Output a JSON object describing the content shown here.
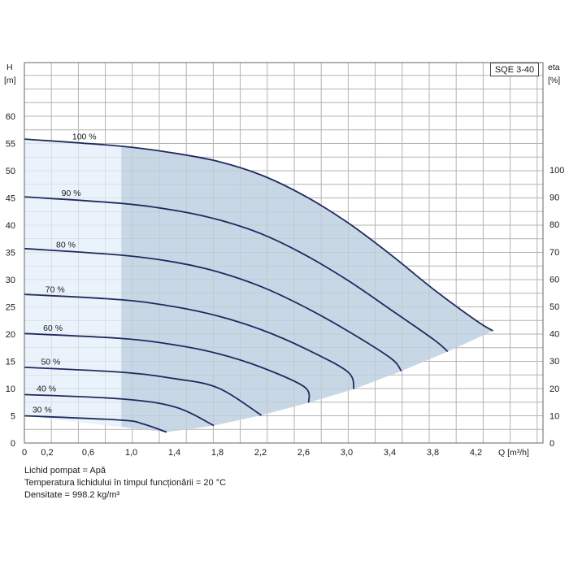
{
  "model": "SQE 3-40",
  "notes": [
    "Lichid pompat = Apă",
    "Temperatura lichidului în timpul funcționării = 20 °C",
    "Densitate = 998.2 kg/m³"
  ],
  "colors": {
    "curve": "#1f2a5e",
    "region_dark": "#c7d7e5",
    "region_light": "#eaf3fb",
    "grid": "#b3b3b3",
    "frame": "#666666"
  },
  "chart_data": {
    "type": "line",
    "title": "",
    "x_axis": {
      "label": "Q [m³/h]",
      "range": [
        0,
        4.7
      ],
      "ticks": [
        "0",
        "0,2",
        "0,6",
        "1,0",
        "1,4",
        "1,8",
        "2,2",
        "2,6",
        "3,0",
        "3,4",
        "3,8",
        "4,2"
      ]
    },
    "y_axis_left": {
      "label_top": "H",
      "label_unit": "[m]",
      "range": [
        0,
        60
      ],
      "ticks": [
        0,
        5,
        10,
        15,
        20,
        25,
        30,
        35,
        40,
        45,
        50,
        55,
        60
      ]
    },
    "y_axis_right": {
      "label_top": "eta",
      "label_unit": "[%]",
      "range": [
        0,
        100
      ],
      "ticks": [
        0,
        10,
        20,
        30,
        40,
        50,
        60,
        70,
        80,
        90,
        100
      ]
    },
    "grid": true,
    "series": [
      {
        "name": "100 %",
        "x": [
          0,
          0.9,
          1.4,
          1.8,
          2.2,
          2.6,
          3.0,
          3.4,
          3.8,
          4.2,
          4.35
        ],
        "y": [
          55.8,
          54.5,
          53.2,
          51.7,
          49.2,
          45.4,
          40.5,
          34.6,
          28.2,
          22.4,
          20.6
        ]
      },
      {
        "name": "90 %",
        "x": [
          0,
          0.9,
          1.4,
          1.8,
          2.2,
          2.6,
          3.0,
          3.4,
          3.8,
          3.93
        ],
        "y": [
          45.2,
          44.0,
          42.7,
          41.0,
          38.4,
          34.6,
          29.9,
          24.5,
          19.0,
          16.8
        ]
      },
      {
        "name": "80 %",
        "x": [
          0,
          0.9,
          1.4,
          1.8,
          2.2,
          2.6,
          3.0,
          3.4,
          3.5
        ],
        "y": [
          35.7,
          34.5,
          33.2,
          31.4,
          28.7,
          25.0,
          20.6,
          15.6,
          13.2
        ]
      },
      {
        "name": "70 %",
        "x": [
          0,
          0.9,
          1.4,
          1.8,
          2.2,
          2.6,
          3.0,
          3.06
        ],
        "y": [
          27.3,
          26.3,
          25.0,
          23.3,
          20.8,
          17.4,
          13.1,
          9.9
        ]
      },
      {
        "name": "60 %",
        "x": [
          0,
          0.9,
          1.4,
          1.8,
          2.2,
          2.6,
          2.64
        ],
        "y": [
          20.1,
          19.2,
          18.0,
          16.4,
          13.9,
          10.3,
          7.4
        ]
      },
      {
        "name": "50 %",
        "x": [
          0,
          0.9,
          1.4,
          1.8,
          2.2
        ],
        "y": [
          13.9,
          13.0,
          11.8,
          10.1,
          5.1
        ]
      },
      {
        "name": "40 %",
        "x": [
          0,
          0.9,
          1.4,
          1.76
        ],
        "y": [
          8.9,
          8.1,
          6.6,
          3.2
        ]
      },
      {
        "name": "30 %",
        "x": [
          0,
          0.9,
          1.1,
          1.32
        ],
        "y": [
          5.0,
          4.2,
          3.5,
          2.0
        ]
      }
    ],
    "operating_region": {
      "lower_boundary": {
        "x": [
          1.32,
          1.76,
          2.2,
          2.64,
          3.06,
          3.5,
          3.93,
          4.35
        ],
        "y": [
          2.0,
          3.2,
          5.1,
          7.4,
          9.9,
          13.2,
          16.8,
          20.6
        ]
      },
      "light_zone_x_max": 0.9
    }
  }
}
